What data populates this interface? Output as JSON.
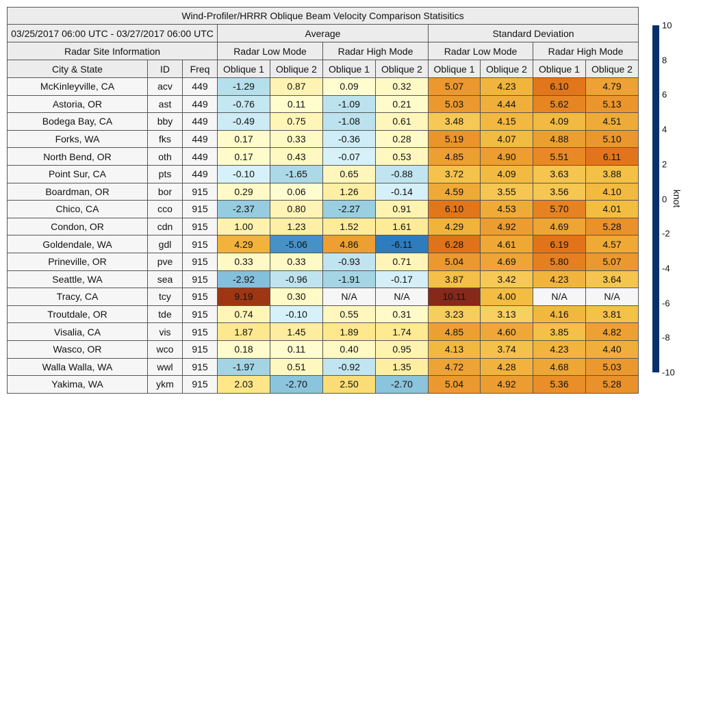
{
  "title": "Wind-Profiler/HRRR Oblique Beam Velocity Comparison Statisitics",
  "date_range": "03/25/2017 06:00 UTC - 03/27/2017 06:00 UTC",
  "groups": {
    "average": "Average",
    "std": "Standard Deviation"
  },
  "site_info": "Radar Site Information",
  "modes": {
    "low": "Radar Low Mode",
    "high": "Radar High Mode"
  },
  "columns": {
    "city": "City & State",
    "id": "ID",
    "freq": "Freq",
    "ob1": "Oblique 1",
    "ob2": "Oblique 2"
  },
  "colorbar": {
    "unit": "knot",
    "range": [
      -10,
      10
    ],
    "ticks": [
      "10",
      "8",
      "6",
      "4",
      "2",
      "0",
      "-2",
      "-4",
      "-6",
      "-8",
      "-10"
    ],
    "stops": [
      [
        -10,
        "#08306b"
      ],
      [
        -8,
        "#0b4d94"
      ],
      [
        -6,
        "#2f7fbf"
      ],
      [
        -4,
        "#5fa7d0"
      ],
      [
        -2,
        "#a3d4e4"
      ],
      [
        -0.001,
        "#d9f2fa"
      ],
      [
        0,
        "#fffdd2"
      ],
      [
        2,
        "#fee78a"
      ],
      [
        4,
        "#f3bd42"
      ],
      [
        6,
        "#e4781c"
      ],
      [
        8,
        "#c24a0b"
      ],
      [
        10,
        "#86291a"
      ]
    ],
    "na_color": "#f6f6f6"
  },
  "chart_data": {
    "type": "table",
    "value_columns": [
      "Average Low Oblique 1",
      "Average Low Oblique 2",
      "Average High Oblique 1",
      "Average High Oblique 2",
      "Std Low Oblique 1",
      "Std Low Oblique 2",
      "Std High Oblique 1",
      "Std High Oblique 2"
    ],
    "rows": [
      {
        "city": "McKinleyville, CA",
        "id": "acv",
        "freq": "449",
        "values": [
          "-1.29",
          "0.87",
          "0.09",
          "0.32",
          "5.07",
          "4.23",
          "6.10",
          "4.79"
        ]
      },
      {
        "city": "Astoria, OR",
        "id": "ast",
        "freq": "449",
        "values": [
          "-0.76",
          "0.11",
          "-1.09",
          "0.21",
          "5.03",
          "4.44",
          "5.62",
          "5.13"
        ]
      },
      {
        "city": "Bodega Bay, CA",
        "id": "bby",
        "freq": "449",
        "values": [
          "-0.49",
          "0.75",
          "-1.08",
          "0.61",
          "3.48",
          "4.15",
          "4.09",
          "4.51"
        ]
      },
      {
        "city": "Forks, WA",
        "id": "fks",
        "freq": "449",
        "values": [
          "0.17",
          "0.33",
          "-0.36",
          "0.28",
          "5.19",
          "4.07",
          "4.88",
          "5.10"
        ]
      },
      {
        "city": "North Bend, OR",
        "id": "oth",
        "freq": "449",
        "values": [
          "0.17",
          "0.43",
          "-0.07",
          "0.53",
          "4.85",
          "4.90",
          "5.51",
          "6.11"
        ]
      },
      {
        "city": "Point Sur, CA",
        "id": "pts",
        "freq": "449",
        "values": [
          "-0.10",
          "-1.65",
          "0.65",
          "-0.88",
          "3.72",
          "4.09",
          "3.63",
          "3.88"
        ]
      },
      {
        "city": "Boardman, OR",
        "id": "bor",
        "freq": "915",
        "values": [
          "0.29",
          "0.06",
          "1.26",
          "-0.14",
          "4.59",
          "3.55",
          "3.56",
          "4.10"
        ]
      },
      {
        "city": "Chico, CA",
        "id": "cco",
        "freq": "915",
        "values": [
          "-2.37",
          "0.80",
          "-2.27",
          "0.91",
          "6.10",
          "4.53",
          "5.70",
          "4.01"
        ]
      },
      {
        "city": "Condon, OR",
        "id": "cdn",
        "freq": "915",
        "values": [
          "1.00",
          "1.23",
          "1.52",
          "1.61",
          "4.29",
          "4.92",
          "4.69",
          "5.28"
        ]
      },
      {
        "city": "Goldendale, WA",
        "id": "gdl",
        "freq": "915",
        "values": [
          "4.29",
          "-5.06",
          "4.86",
          "-6.11",
          "6.28",
          "4.61",
          "6.19",
          "4.57"
        ]
      },
      {
        "city": "Prineville, OR",
        "id": "pve",
        "freq": "915",
        "values": [
          "0.33",
          "0.33",
          "-0.93",
          "0.71",
          "5.04",
          "4.69",
          "5.80",
          "5.07"
        ]
      },
      {
        "city": "Seattle, WA",
        "id": "sea",
        "freq": "915",
        "values": [
          "-2.92",
          "-0.96",
          "-1.91",
          "-0.17",
          "3.87",
          "3.42",
          "4.23",
          "3.64"
        ]
      },
      {
        "city": "Tracy, CA",
        "id": "tcy",
        "freq": "915",
        "values": [
          "9.19",
          "0.30",
          "N/A",
          "N/A",
          "10.11",
          "4.00",
          "N/A",
          "N/A"
        ]
      },
      {
        "city": "Troutdale, OR",
        "id": "tde",
        "freq": "915",
        "values": [
          "0.74",
          "-0.10",
          "0.55",
          "0.31",
          "3.23",
          "3.13",
          "4.16",
          "3.81"
        ]
      },
      {
        "city": "Visalia, CA",
        "id": "vis",
        "freq": "915",
        "values": [
          "1.87",
          "1.45",
          "1.89",
          "1.74",
          "4.85",
          "4.60",
          "3.85",
          "4.82"
        ]
      },
      {
        "city": "Wasco, OR",
        "id": "wco",
        "freq": "915",
        "values": [
          "0.18",
          "0.11",
          "0.40",
          "0.95",
          "4.13",
          "3.74",
          "4.23",
          "4.40"
        ]
      },
      {
        "city": "Walla Walla, WA",
        "id": "wwl",
        "freq": "915",
        "values": [
          "-1.97",
          "0.51",
          "-0.92",
          "1.35",
          "4.72",
          "4.28",
          "4.68",
          "5.03"
        ]
      },
      {
        "city": "Yakima, WA",
        "id": "ykm",
        "freq": "915",
        "values": [
          "2.03",
          "-2.70",
          "2.50",
          "-2.70",
          "5.04",
          "4.92",
          "5.36",
          "5.28"
        ]
      }
    ]
  }
}
